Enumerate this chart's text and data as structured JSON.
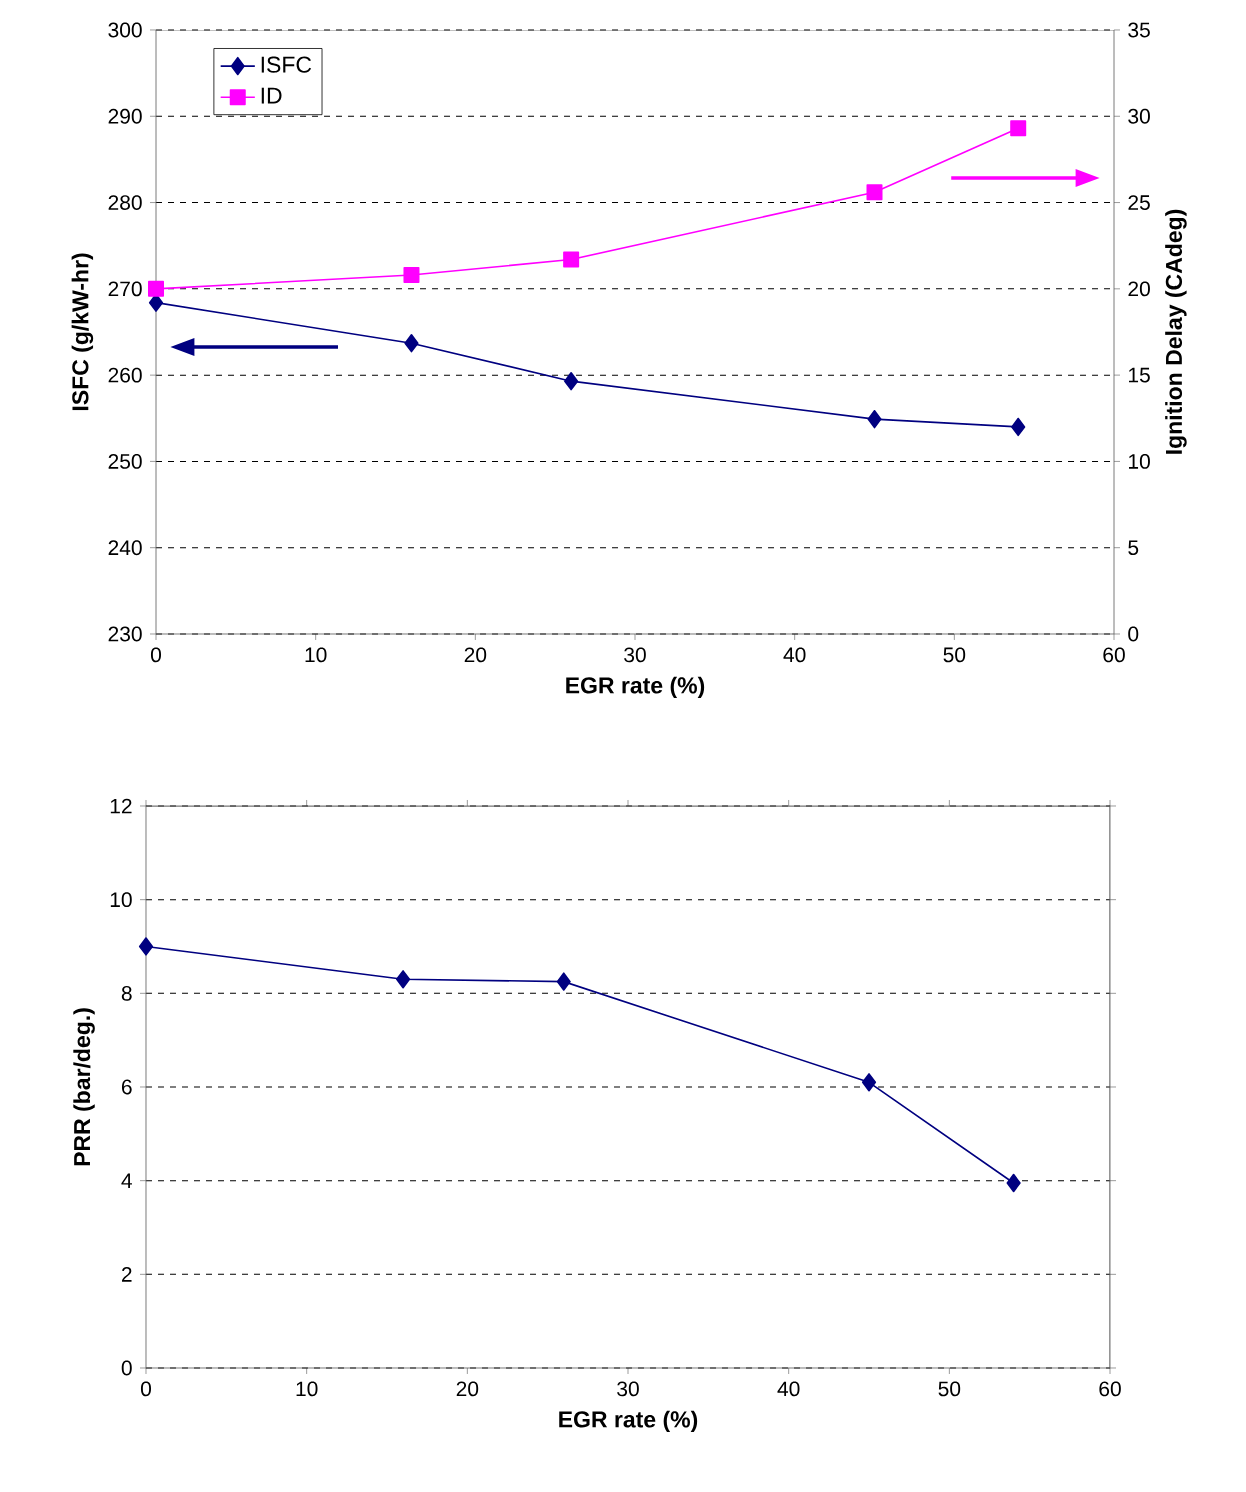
{
  "chart_data": [
    {
      "type": "line",
      "xlabel": "EGR rate (%)",
      "ylabel": "ISFC  (g/kW-hr)",
      "y2label": "Ignition Delay (CAdeg)",
      "x": [
        0,
        16,
        26,
        45,
        54
      ],
      "series": [
        {
          "name": "ISFC",
          "color": "#000080",
          "marker": "diamond",
          "values": [
            268.4,
            263.7,
            259.3,
            254.9,
            254.0
          ]
        },
        {
          "name": "ID",
          "color": "#ff00ff",
          "marker": "square",
          "axis": "y2",
          "values": [
            20.0,
            20.8,
            21.7,
            25.6,
            29.3
          ]
        }
      ],
      "xlim": [
        0,
        60
      ],
      "xticks": [
        0,
        10,
        20,
        30,
        40,
        50,
        60
      ],
      "ylim": [
        230,
        300
      ],
      "yticks": [
        230,
        240,
        250,
        260,
        270,
        280,
        290,
        300
      ],
      "y2lim": [
        0,
        35
      ],
      "y2ticks": [
        0,
        5,
        10,
        15,
        20,
        25,
        30,
        35
      ],
      "grid": "y",
      "legend": "top left"
    },
    {
      "type": "line",
      "xlabel": "EGR rate (%)",
      "ylabel": "PRR (bar/deg.)",
      "x": [
        0,
        16,
        26,
        45,
        54
      ],
      "series": [
        {
          "color": "#000080",
          "marker": "diamond",
          "values": [
            9.0,
            8.3,
            8.25,
            6.1,
            3.95
          ]
        }
      ],
      "xlim": [
        0,
        60
      ],
      "xticks": [
        0,
        10,
        20,
        30,
        40,
        50,
        60
      ],
      "ylim": [
        0,
        12
      ],
      "yticks": [
        0,
        2,
        4,
        6,
        8,
        10,
        12
      ],
      "grid": "y"
    }
  ]
}
